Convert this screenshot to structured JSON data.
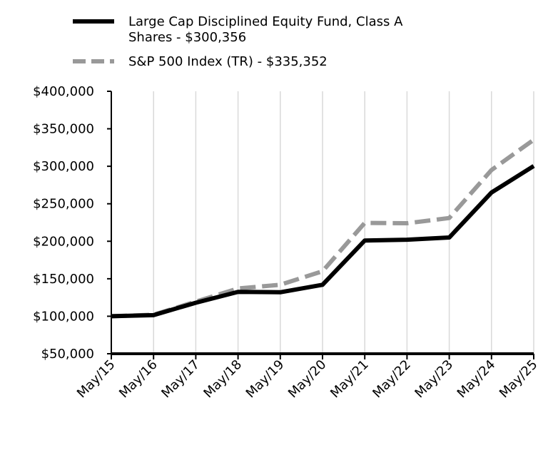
{
  "chart_data": {
    "type": "line",
    "title": "",
    "xlabel": "",
    "ylabel": "",
    "categories": [
      "May/15",
      "May/16",
      "May/17",
      "May/18",
      "May/19",
      "May/20",
      "May/21",
      "May/22",
      "May/23",
      "May/24",
      "May/25"
    ],
    "ylim": [
      50000,
      400000
    ],
    "yticks": [
      "$50,000",
      "$100,000",
      "$150,000",
      "$200,000",
      "$250,000",
      "$300,000",
      "$350,000",
      "$400,000"
    ],
    "ytick_values": [
      50000,
      100000,
      150000,
      200000,
      250000,
      300000,
      350000,
      400000
    ],
    "grid": "vertical",
    "legend_position": "top-left",
    "series": [
      {
        "name": "Large Cap Disciplined Equity Fund, Class A Shares - $300,356",
        "legend_lines": [
          "Large Cap Disciplined Equity Fund, Class A",
          "Shares - $300,356"
        ],
        "color": "#000000",
        "style": "solid",
        "values": [
          100000,
          101500,
          118000,
          132500,
          132000,
          142000,
          201000,
          202000,
          205000,
          265000,
          300356
        ]
      },
      {
        "name": "S&P 500 Index (TR) - $335,352",
        "legend_lines": [
          "S&P 500 Index (TR) - $335,352"
        ],
        "color": "#999999",
        "style": "dashed",
        "values": [
          100000,
          102000,
          119500,
          137000,
          142000,
          160000,
          224500,
          224000,
          231000,
          295000,
          335352
        ]
      }
    ]
  }
}
